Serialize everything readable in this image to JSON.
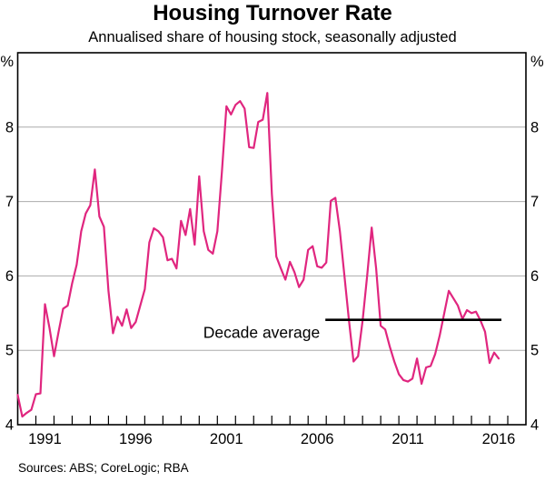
{
  "chart_data": {
    "type": "line",
    "title": "Housing Turnover Rate",
    "subtitle": "Annualised share of housing stock, seasonally adjusted",
    "unit_label": "%",
    "source": "Sources: ABS; CoreLogic; RBA",
    "x_range": [
      1990,
      2018
    ],
    "y_range": [
      4,
      9
    ],
    "y_ticks": [
      4,
      5,
      6,
      7,
      8
    ],
    "x_tick_interval": 1,
    "x_label_years": [
      1991,
      1996,
      2001,
      2006,
      2011,
      2016
    ],
    "grid": "horizontal",
    "grid_color": "#ababab",
    "axis_color": "#000000",
    "series": [
      {
        "name": "Housing turnover rate",
        "color": "#E0267F",
        "points": [
          [
            1990.0,
            4.4
          ],
          [
            1990.25,
            4.11
          ],
          [
            1990.5,
            4.16
          ],
          [
            1990.75,
            4.2
          ],
          [
            1991.0,
            4.41
          ],
          [
            1991.25,
            4.42
          ],
          [
            1991.5,
            5.62
          ],
          [
            1991.75,
            5.3
          ],
          [
            1992.0,
            4.92
          ],
          [
            1992.25,
            5.25
          ],
          [
            1992.5,
            5.56
          ],
          [
            1992.75,
            5.6
          ],
          [
            1993.0,
            5.9
          ],
          [
            1993.25,
            6.15
          ],
          [
            1993.5,
            6.6
          ],
          [
            1993.75,
            6.84
          ],
          [
            1994.0,
            6.95
          ],
          [
            1994.25,
            7.43
          ],
          [
            1994.5,
            6.8
          ],
          [
            1994.75,
            6.66
          ],
          [
            1995.0,
            5.8
          ],
          [
            1995.25,
            5.23
          ],
          [
            1995.5,
            5.45
          ],
          [
            1995.75,
            5.33
          ],
          [
            1996.0,
            5.55
          ],
          [
            1996.25,
            5.3
          ],
          [
            1996.5,
            5.38
          ],
          [
            1996.75,
            5.6
          ],
          [
            1997.0,
            5.82
          ],
          [
            1997.25,
            6.45
          ],
          [
            1997.5,
            6.64
          ],
          [
            1997.75,
            6.6
          ],
          [
            1998.0,
            6.52
          ],
          [
            1998.25,
            6.21
          ],
          [
            1998.5,
            6.23
          ],
          [
            1998.75,
            6.1
          ],
          [
            1999.0,
            6.74
          ],
          [
            1999.25,
            6.55
          ],
          [
            1999.5,
            6.9
          ],
          [
            1999.75,
            6.42
          ],
          [
            2000.0,
            7.34
          ],
          [
            2000.25,
            6.6
          ],
          [
            2000.5,
            6.35
          ],
          [
            2000.75,
            6.3
          ],
          [
            2001.0,
            6.6
          ],
          [
            2001.25,
            7.4
          ],
          [
            2001.5,
            8.28
          ],
          [
            2001.75,
            8.17
          ],
          [
            2002.0,
            8.3
          ],
          [
            2002.25,
            8.35
          ],
          [
            2002.5,
            8.25
          ],
          [
            2002.75,
            7.73
          ],
          [
            2003.0,
            7.72
          ],
          [
            2003.25,
            8.07
          ],
          [
            2003.5,
            8.1
          ],
          [
            2003.75,
            8.46
          ],
          [
            2004.0,
            7.1
          ],
          [
            2004.25,
            6.26
          ],
          [
            2004.5,
            6.1
          ],
          [
            2004.75,
            5.95
          ],
          [
            2005.0,
            6.19
          ],
          [
            2005.25,
            6.05
          ],
          [
            2005.5,
            5.85
          ],
          [
            2005.75,
            5.95
          ],
          [
            2006.0,
            6.35
          ],
          [
            2006.25,
            6.4
          ],
          [
            2006.5,
            6.13
          ],
          [
            2006.75,
            6.11
          ],
          [
            2007.0,
            6.18
          ],
          [
            2007.25,
            7.01
          ],
          [
            2007.5,
            7.05
          ],
          [
            2007.75,
            6.6
          ],
          [
            2008.0,
            6.0
          ],
          [
            2008.25,
            5.4
          ],
          [
            2008.5,
            4.85
          ],
          [
            2008.75,
            4.92
          ],
          [
            2009.0,
            5.4
          ],
          [
            2009.25,
            6.0
          ],
          [
            2009.5,
            6.65
          ],
          [
            2009.75,
            6.1
          ],
          [
            2010.0,
            5.33
          ],
          [
            2010.25,
            5.28
          ],
          [
            2010.5,
            5.05
          ],
          [
            2010.75,
            4.85
          ],
          [
            2011.0,
            4.68
          ],
          [
            2011.25,
            4.6
          ],
          [
            2011.5,
            4.58
          ],
          [
            2011.75,
            4.62
          ],
          [
            2012.0,
            4.89
          ],
          [
            2012.25,
            4.55
          ],
          [
            2012.5,
            4.77
          ],
          [
            2012.75,
            4.79
          ],
          [
            2013.0,
            4.95
          ],
          [
            2013.25,
            5.2
          ],
          [
            2013.5,
            5.5
          ],
          [
            2013.75,
            5.8
          ],
          [
            2014.0,
            5.7
          ],
          [
            2014.25,
            5.6
          ],
          [
            2014.5,
            5.42
          ],
          [
            2014.75,
            5.54
          ],
          [
            2015.0,
            5.5
          ],
          [
            2015.25,
            5.52
          ],
          [
            2015.5,
            5.4
          ],
          [
            2015.75,
            5.25
          ],
          [
            2016.0,
            4.83
          ],
          [
            2016.25,
            4.97
          ],
          [
            2016.5,
            4.89
          ]
        ]
      }
    ],
    "annotation": {
      "label": "Decade average",
      "line": {
        "y": 5.41,
        "x_start": 2006.95,
        "x_end": 2016.65,
        "color": "#000000"
      }
    }
  }
}
